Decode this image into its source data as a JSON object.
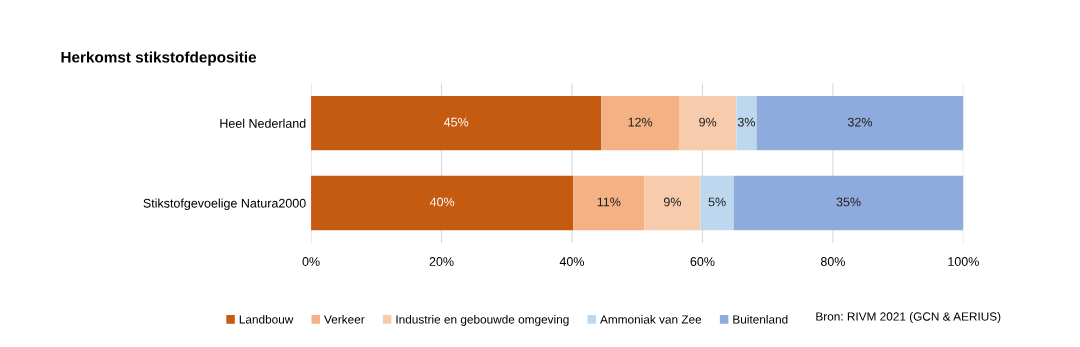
{
  "chart_data": {
    "type": "bar",
    "orientation": "horizontal",
    "stacked": true,
    "title": "Herkomst stikstofdepositie",
    "categories": [
      "Heel Nederland",
      "Stikstofgevoelige Natura2000"
    ],
    "series": [
      {
        "name": "Landbouw",
        "color": "#c55a11",
        "values": [
          44.5,
          40.2
        ],
        "value_labels": [
          "45%",
          "40%"
        ]
      },
      {
        "name": "Verkeer",
        "color": "#f4b183",
        "values": [
          11.9,
          10.9
        ],
        "value_labels": [
          "12%",
          "11%"
        ]
      },
      {
        "name": "Industrie en gebouwde omgeving",
        "color": "#f8cbad",
        "values": [
          8.8,
          8.6
        ],
        "value_labels": [
          "9%",
          "9%"
        ]
      },
      {
        "name": "Ammoniak van Zee",
        "color": "#bdd7ee",
        "values": [
          3.1,
          5.1
        ],
        "value_labels": [
          "3%",
          "5%"
        ]
      },
      {
        "name": "Buitenland",
        "color": "#8faadc",
        "values": [
          31.7,
          35.2
        ],
        "value_labels": [
          "32%",
          "35%"
        ]
      }
    ],
    "xlim": [
      0,
      100
    ],
    "xticks": [
      {
        "value": 0,
        "label": "0%"
      },
      {
        "value": 20,
        "label": "20%"
      },
      {
        "value": 40,
        "label": "40%"
      },
      {
        "value": 60,
        "label": "60%"
      },
      {
        "value": 80,
        "label": "80%"
      },
      {
        "value": 100,
        "label": "100%"
      }
    ],
    "grid": "x",
    "legend": "bottom",
    "annotations": [
      "Bron: RIVM 2021 (GCN & AERIUS)"
    ]
  }
}
